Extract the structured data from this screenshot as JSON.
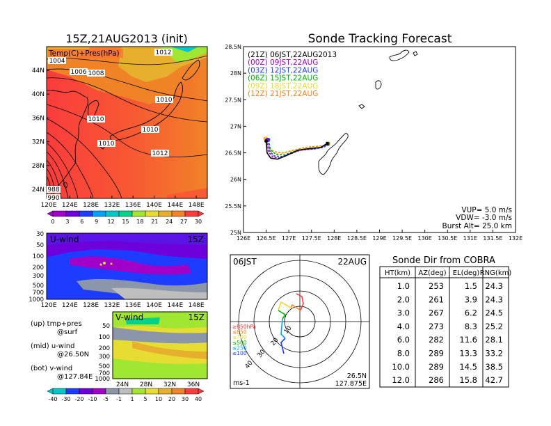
{
  "left": {
    "title": "15Z,21AUG2013 (init)",
    "map_label": "Temp(C)+Pres(hPa)",
    "map_lat_ticks": [
      "44N",
      "40N",
      "36N",
      "32N",
      "28N",
      "24N"
    ],
    "map_lon_ticks": [
      "120E",
      "124E",
      "128E",
      "132E",
      "136E",
      "140E",
      "144E",
      "148E"
    ],
    "isobar_labels": [
      "1004",
      "1006",
      "1008",
      "1012",
      "1010",
      "1010",
      "1010",
      "1010",
      "1012",
      "988",
      "990"
    ],
    "temp_colorbar": [
      "0",
      "3",
      "6",
      "9",
      "12",
      "15",
      "18",
      "21",
      "24",
      "27",
      "30"
    ],
    "temp_colors": [
      "#a000c8",
      "#6e00dc",
      "#1e3cff",
      "#00a0ff",
      "#00c8c8",
      "#00d28c",
      "#a0e632",
      "#e6dc32",
      "#e6af2d",
      "#f08228",
      "#fa3c3c"
    ],
    "u_wind_label": "U-wind",
    "u_wind_time": "15Z",
    "u_pres_ticks": [
      "30",
      "50",
      "100",
      "200",
      "300",
      "500",
      "700",
      "1000"
    ],
    "u_lon_ticks": [
      "120E",
      "124E",
      "128E",
      "132E",
      "136E",
      "140E",
      "144E",
      "148E"
    ],
    "v_wind_label": "V-wind",
    "v_wind_time": "15Z",
    "v_pres_ticks": [
      "50",
      "100",
      "200",
      "300",
      "500",
      "700",
      "1000"
    ],
    "v_lat_ticks": [
      "24N",
      "28N",
      "32N",
      "36N"
    ],
    "wind_colorbar": [
      "-40",
      "-30",
      "-20",
      "-10",
      "-5",
      "-1",
      "1",
      "5",
      "10",
      "20",
      "30",
      "40"
    ],
    "wind_colors": [
      "#00c8c8",
      "#1e3cff",
      "#6e00dc",
      "#a000c8",
      "#8c96aa",
      "#bebebe",
      "#a0e632",
      "#e6dc32",
      "#e6af2d",
      "#f08228",
      "#fa3c3c"
    ],
    "legend_lines": [
      "(up) tmp+pres",
      "@surf",
      "(mid) u-wind",
      "@26.50N",
      "(bot) v-wind",
      "@127.84E"
    ]
  },
  "track": {
    "title": "Sonde Tracking Forecast",
    "legend": [
      {
        "label": "(21Z)  06JST,22AUG2013",
        "color": "#000000"
      },
      {
        "label": "(00Z)  09JST,22AUG",
        "color": "#a000c8"
      },
      {
        "label": "(03Z)  12JST,22AUG",
        "color": "#1e3cff"
      },
      {
        "label": "(06Z)  15JST,22AUG",
        "color": "#00b400"
      },
      {
        "label": "(09Z)  18JST,22AUG",
        "color": "#e6dc32"
      },
      {
        "label": "(12Z)  21JST,22AUG",
        "color": "#f08228"
      }
    ],
    "lat_ticks": [
      "28.5N",
      "28N",
      "27.5N",
      "27N",
      "26.5N",
      "26N",
      "25.5N",
      "25N"
    ],
    "lon_ticks": [
      "126E",
      "126.5E",
      "127E",
      "127.5E",
      "128E",
      "128.5E",
      "129E",
      "129.5E",
      "130E",
      "130.5E",
      "131E",
      "131.5E",
      "132E"
    ],
    "vup": "VUP= 5.0 m/s",
    "vdw": "VDW= -3.0 m/s",
    "burst": "Burst Alt= 25.0 km"
  },
  "polar": {
    "time_label": "06JST",
    "date_label": "22AUG",
    "pressure_labels": [
      {
        "text": "≥850hPa",
        "color": "#fa3c3c"
      },
      {
        "text": "≤850",
        "color": "#f08228"
      },
      {
        "text": "≤700",
        "color": "#e6dc32"
      },
      {
        "text": "≤500",
        "color": "#00b400"
      },
      {
        "text": "≤250",
        "color": "#00a0ff"
      },
      {
        "text": "≤100",
        "color": "#1e3cff"
      }
    ],
    "ring_labels": [
      "10",
      "20",
      "30",
      "40"
    ],
    "units": "ms-1",
    "loc_lat": "26.5N",
    "loc_lon": "127.875E"
  },
  "cobra": {
    "title": "Sonde Dir from COBRA",
    "headers": [
      "HT(km)",
      "AZ(deg)",
      "EL(deg)",
      "RNG(km)"
    ],
    "rows": [
      [
        "1.0",
        "253",
        "1.5",
        "24.3"
      ],
      [
        "2.0",
        "261",
        "3.9",
        "24.3"
      ],
      [
        "3.0",
        "267",
        "6.2",
        "24.5"
      ],
      [
        "4.0",
        "273",
        "8.3",
        "25.2"
      ],
      [
        "6.0",
        "282",
        "11.6",
        "28.1"
      ],
      [
        "8.0",
        "289",
        "13.3",
        "33.2"
      ],
      [
        "10.0",
        "289",
        "14.5",
        "38.5"
      ],
      [
        "12.0",
        "286",
        "15.8",
        "42.7"
      ]
    ]
  },
  "chart_data": [
    {
      "type": "line",
      "title": "Sonde Tracking Forecast",
      "xlim": [
        126,
        132
      ],
      "ylim": [
        25,
        28.5
      ],
      "series": [
        {
          "name": "(21Z)  06JST,22AUG2013",
          "x": [
            126.5,
            126.52,
            126.6,
            126.75,
            126.95,
            127.2,
            127.45,
            127.7,
            127.85
          ],
          "y": [
            26.72,
            26.5,
            26.4,
            26.38,
            26.45,
            26.55,
            26.58,
            26.6,
            26.68
          ]
        },
        {
          "name": "(00Z)  09JST,22AUG",
          "x": [
            126.52,
            126.55,
            126.65,
            126.8,
            127.0,
            127.25,
            127.5,
            127.72,
            127.85
          ],
          "y": [
            26.75,
            26.52,
            26.42,
            26.4,
            26.47,
            26.55,
            26.57,
            26.6,
            26.67
          ]
        },
        {
          "name": "(03Z)  12JST,22AUG",
          "x": [
            126.55,
            126.58,
            126.68,
            126.85,
            127.05,
            127.3,
            127.55,
            127.75,
            127.85
          ],
          "y": [
            26.75,
            26.53,
            26.44,
            26.43,
            26.5,
            26.56,
            26.57,
            26.6,
            26.66
          ]
        },
        {
          "name": "(06Z)  15JST,22AUG",
          "x": [
            126.55,
            126.6,
            126.72,
            126.9,
            127.1,
            127.35,
            127.6,
            127.78,
            127.87
          ],
          "y": [
            26.74,
            26.55,
            26.47,
            26.46,
            26.52,
            26.57,
            26.58,
            26.61,
            26.66
          ]
        },
        {
          "name": "(09Z)  18JST,22AUG",
          "x": [
            126.5,
            126.55,
            126.65,
            126.82,
            127.05,
            127.3,
            127.55,
            127.75,
            127.85
          ],
          "y": [
            26.78,
            26.58,
            26.5,
            26.48,
            26.53,
            26.58,
            26.6,
            26.63,
            26.68
          ]
        },
        {
          "name": "(12Z)  21JST,22AUG",
          "x": [
            126.48,
            126.55,
            126.68,
            126.88,
            127.1,
            127.35,
            127.6,
            127.78,
            127.88
          ],
          "y": [
            26.77,
            26.6,
            26.52,
            26.5,
            26.55,
            26.6,
            26.62,
            26.64,
            26.68
          ]
        }
      ]
    },
    {
      "type": "table",
      "title": "Sonde Dir from COBRA",
      "columns": [
        "HT(km)",
        "AZ(deg)",
        "EL(deg)",
        "RNG(km)"
      ],
      "rows": [
        [
          1.0,
          253,
          1.5,
          24.3
        ],
        [
          2.0,
          261,
          3.9,
          24.3
        ],
        [
          3.0,
          267,
          6.2,
          24.5
        ],
        [
          4.0,
          273,
          8.3,
          25.2
        ],
        [
          6.0,
          282,
          11.6,
          28.1
        ],
        [
          8.0,
          289,
          13.3,
          33.2
        ],
        [
          10.0,
          289,
          14.5,
          38.5
        ],
        [
          12.0,
          286,
          15.8,
          42.7
        ]
      ]
    }
  ]
}
